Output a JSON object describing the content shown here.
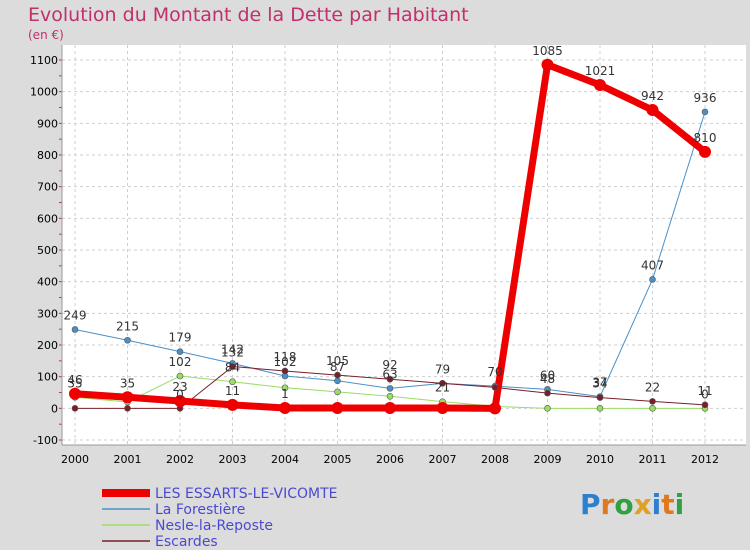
{
  "title": "Evolution du Montant de la Dette par Habitant",
  "unit": "(en €)",
  "logo": "Proxiti",
  "colors": {
    "title": "#c0306a",
    "plot_bg": "#ffffff",
    "grid": "#cfcfcf",
    "axis_text": "#000000",
    "value_label": "#333333"
  },
  "chart_data": {
    "type": "line",
    "title": "Evolution du Montant de la Dette par Habitant",
    "subtitle": "(en €)",
    "x": [
      "2000",
      "2001",
      "2002",
      "2003",
      "2004",
      "2005",
      "2006",
      "2007",
      "2008",
      "2009",
      "2010",
      "2011",
      "2012"
    ],
    "ylim": [
      -100,
      1100
    ],
    "yticks": [
      -100,
      0,
      100,
      200,
      300,
      400,
      500,
      600,
      700,
      800,
      900,
      1000,
      1100
    ],
    "grid": true,
    "legend_position": "bottom-left",
    "series": [
      {
        "name": "LES ESSARTS-LE-VICOMTE",
        "color": "#ee0000",
        "width": 7,
        "marker": 6,
        "values": [
          46,
          35,
          23,
          11,
          1,
          1,
          1,
          1,
          0,
          1085,
          1021,
          942,
          810
        ],
        "labels": [
          "46",
          "35",
          "23",
          "11",
          "1",
          "",
          "",
          "",
          "",
          "1085",
          "1021",
          "942",
          "810"
        ]
      },
      {
        "name": "La Forestière",
        "color": "#4a90c8",
        "width": 1,
        "marker": 3,
        "values": [
          249,
          215,
          179,
          142,
          102,
          87,
          63,
          79,
          70,
          60,
          37,
          407,
          936
        ],
        "labels": [
          "249",
          "215",
          "179",
          "142",
          "102",
          "87",
          "63",
          "79",
          "70",
          "60",
          "37",
          "407",
          "936"
        ]
      },
      {
        "name": "Nesle-la-Reposte",
        "color": "#99dd66",
        "width": 1,
        "marker": 3,
        "values": [
          35,
          20,
          102,
          84,
          65,
          52,
          38,
          21,
          6,
          0,
          0,
          0,
          0
        ],
        "labels": [
          "35",
          "",
          "102",
          "84",
          "",
          "",
          "",
          "21",
          "",
          "",
          "",
          "",
          "0"
        ]
      },
      {
        "name": "Escardes",
        "color": "#7a1f2a",
        "width": 1,
        "marker": 3,
        "values": [
          0,
          0,
          0,
          132,
          118,
          105,
          92,
          79,
          66,
          48,
          34,
          22,
          11
        ],
        "labels": [
          "",
          "",
          "0",
          "132",
          "118",
          "105",
          "92",
          "",
          "",
          "48",
          "34",
          "22",
          "11"
        ]
      }
    ]
  }
}
